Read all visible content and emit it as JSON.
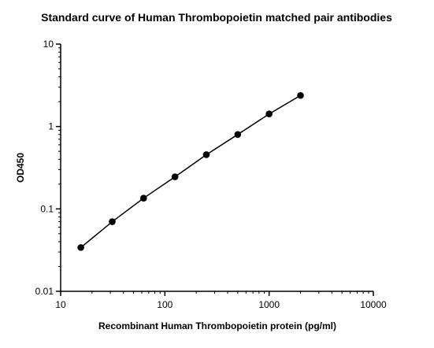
{
  "chart_data": {
    "type": "scatter",
    "title": "Standard curve of Human Thrombopoietin matched pair antibodies",
    "xlabel": "Recombinant Human Thrombopoietin protein (pg/ml)",
    "ylabel": "OD450",
    "x_scale": "log",
    "y_scale": "log",
    "xlim": [
      10,
      10000
    ],
    "ylim": [
      0.01,
      10
    ],
    "x_ticks": [
      10,
      100,
      1000,
      10000
    ],
    "x_tick_labels": [
      "10",
      "100",
      "1000",
      "10000"
    ],
    "y_ticks": [
      0.01,
      0.1,
      1,
      10
    ],
    "y_tick_labels": [
      "0.01",
      "0.1",
      "1",
      "10"
    ],
    "grid": false,
    "legend": "none",
    "series": [
      {
        "x": [
          15.625,
          31.25,
          62.5,
          125,
          250,
          500,
          1000,
          2000
        ],
        "y": [
          0.034,
          0.07,
          0.135,
          0.245,
          0.455,
          0.8,
          1.42,
          2.38
        ],
        "color": "#000000",
        "marker": "circle",
        "line": "fit"
      }
    ]
  }
}
